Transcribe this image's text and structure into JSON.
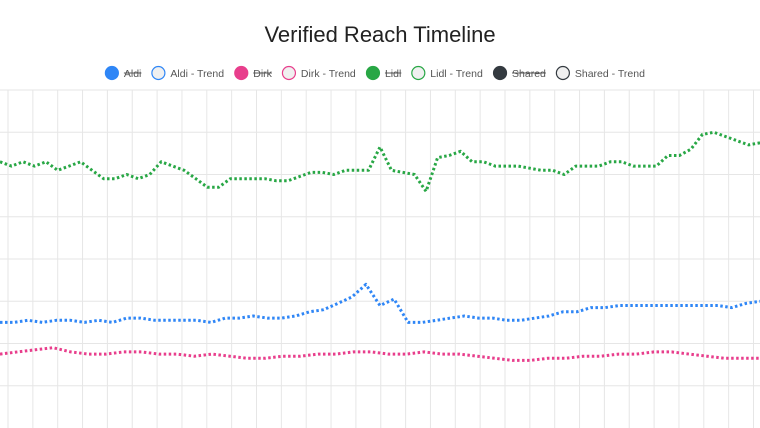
{
  "chart_data": {
    "type": "line",
    "title": "Verified Reach Timeline",
    "xlabel": "",
    "ylabel": "",
    "grid": true,
    "ylim": [
      0,
      8
    ],
    "legend": {
      "placement": "top",
      "entries": [
        {
          "label": "Aldi",
          "color": "#2f86f6",
          "hidden": true,
          "filled": true
        },
        {
          "label": "Aldi - Trend",
          "color": "#2f86f6",
          "hidden": false,
          "filled": false
        },
        {
          "label": "Dirk",
          "color": "#e83e8c",
          "hidden": true,
          "filled": true
        },
        {
          "label": "Dirk - Trend",
          "color": "#e83e8c",
          "hidden": false,
          "filled": false
        },
        {
          "label": "Lidl",
          "color": "#28a745",
          "hidden": true,
          "filled": true
        },
        {
          "label": "Lidl - Trend",
          "color": "#28a745",
          "hidden": false,
          "filled": false
        },
        {
          "label": "Shared",
          "color": "#343a40",
          "hidden": true,
          "filled": true
        },
        {
          "label": "Shared - Trend",
          "color": "#343a40",
          "hidden": false,
          "filled": false
        }
      ]
    },
    "series": [
      {
        "name": "Lidl - Trend",
        "color": "#28a745",
        "values": [
          6.3,
          6.2,
          6.3,
          6.2,
          6.3,
          6.1,
          6.2,
          6.3,
          6.1,
          5.9,
          5.9,
          6.0,
          5.9,
          6.0,
          6.3,
          6.2,
          6.1,
          5.9,
          5.7,
          5.7,
          5.9,
          5.9,
          5.9,
          5.9,
          5.85,
          5.85,
          5.95,
          6.05,
          6.05,
          6.0,
          6.1,
          6.1,
          6.1,
          6.65,
          6.1,
          6.05,
          6.0,
          5.6,
          6.4,
          6.45,
          6.55,
          6.3,
          6.3,
          6.2,
          6.2,
          6.2,
          6.15,
          6.1,
          6.1,
          6.0,
          6.2,
          6.2,
          6.2,
          6.3,
          6.3,
          6.2,
          6.2,
          6.2,
          6.45,
          6.45,
          6.6,
          6.95,
          7.0,
          6.9,
          6.8,
          6.7,
          6.75
        ],
        "x_labels": []
      },
      {
        "name": "Aldi - Trend",
        "color": "#2f86f6",
        "values": [
          2.5,
          2.5,
          2.55,
          2.5,
          2.55,
          2.55,
          2.5,
          2.55,
          2.5,
          2.6,
          2.6,
          2.55,
          2.55,
          2.55,
          2.55,
          2.5,
          2.6,
          2.6,
          2.65,
          2.6,
          2.6,
          2.65,
          2.75,
          2.8,
          2.95,
          3.1,
          3.4,
          2.9,
          3.05,
          2.5,
          2.5,
          2.55,
          2.6,
          2.65,
          2.6,
          2.6,
          2.55,
          2.55,
          2.6,
          2.65,
          2.75,
          2.75,
          2.85,
          2.85,
          2.9,
          2.9,
          2.9,
          2.9,
          2.9,
          2.9,
          2.9,
          2.9,
          2.85,
          2.95,
          3.0
        ],
        "x_labels": []
      },
      {
        "name": "Dirk - Trend",
        "color": "#e83e8c",
        "values": [
          1.75,
          1.8,
          1.85,
          1.9,
          1.8,
          1.75,
          1.75,
          1.8,
          1.8,
          1.75,
          1.75,
          1.7,
          1.75,
          1.7,
          1.65,
          1.65,
          1.7,
          1.7,
          1.75,
          1.75,
          1.8,
          1.8,
          1.75,
          1.75,
          1.8,
          1.75,
          1.75,
          1.7,
          1.65,
          1.6,
          1.6,
          1.65,
          1.65,
          1.7,
          1.7,
          1.75,
          1.75,
          1.8,
          1.8,
          1.75,
          1.7,
          1.65,
          1.65,
          1.65
        ],
        "x_labels": []
      }
    ]
  }
}
